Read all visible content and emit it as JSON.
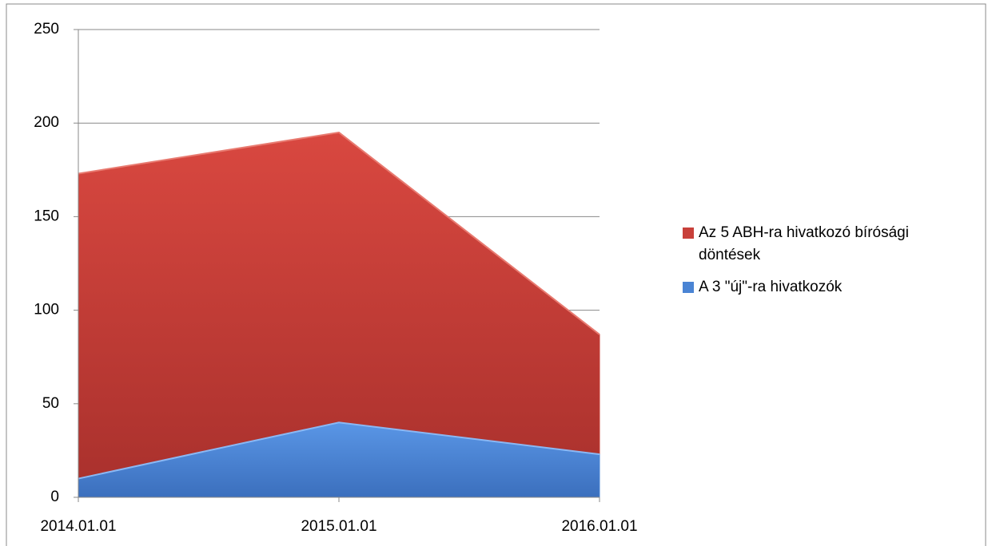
{
  "chart_data": {
    "type": "area",
    "categories": [
      "2014.01.01",
      "2015.01.01",
      "2016.01.01"
    ],
    "series": [
      {
        "name": "Az 5 ABH-ra hivatkozó bírósági döntések",
        "color": "#c8403a",
        "values": [
          173,
          195,
          87
        ]
      },
      {
        "name": "A 3 \"új\"-ra hivatkozók",
        "color": "#4a84d4",
        "values": [
          10,
          40,
          23
        ]
      }
    ],
    "ylim": [
      0,
      250
    ],
    "yticks": [
      0,
      50,
      100,
      150,
      200,
      250
    ],
    "grid": true,
    "legend": "right"
  }
}
